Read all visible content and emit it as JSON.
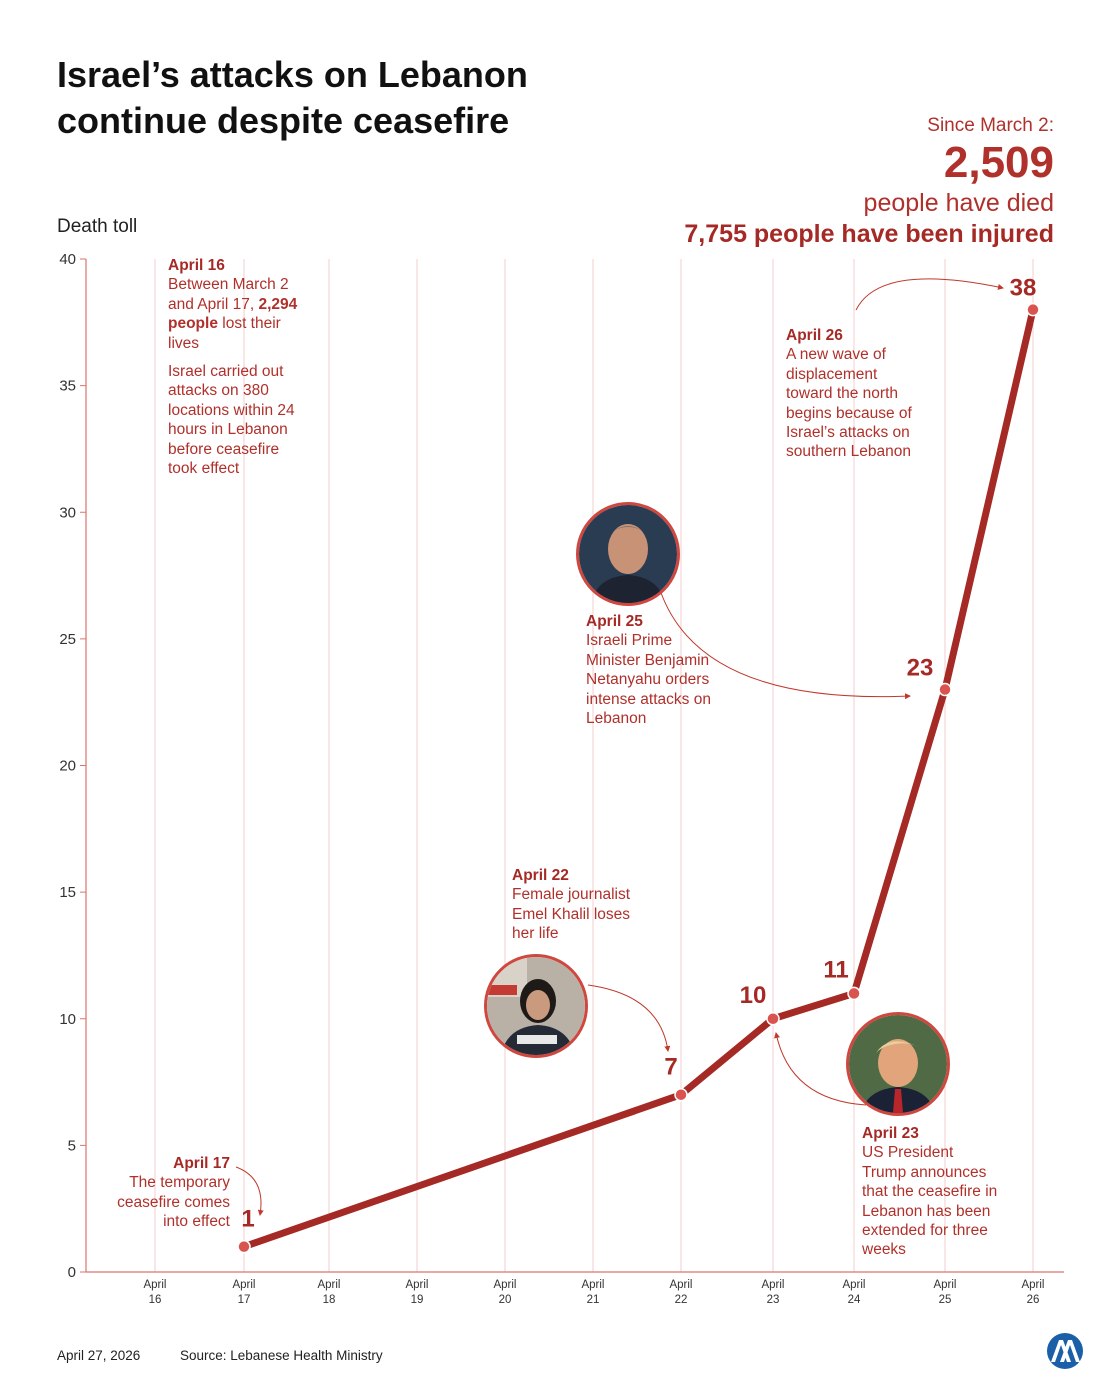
{
  "title": [
    "Israel’s attacks on Lebanon",
    "continue despite ceasefire"
  ],
  "summary": {
    "since": "Since March 2:",
    "died_number": "2,509",
    "died_text": "people have died",
    "injured": "7,755 people have been injured"
  },
  "colors": {
    "accent": "#a52a25",
    "text_accent": "#b0302b",
    "gridline": "#f2cfcc"
  },
  "chart_data": {
    "type": "line",
    "title": "Israel’s attacks on Lebanon continue despite ceasefire",
    "ylabel": "Death toll",
    "xlabel": "",
    "ylim": [
      0,
      40
    ],
    "yticks": [
      0,
      5,
      10,
      15,
      20,
      25,
      30,
      35,
      40
    ],
    "categories": [
      [
        "April",
        "16"
      ],
      [
        "April",
        "17"
      ],
      [
        "April",
        "18"
      ],
      [
        "April",
        "19"
      ],
      [
        "April",
        "20"
      ],
      [
        "April",
        "21"
      ],
      [
        "April",
        "22"
      ],
      [
        "April",
        "23"
      ],
      [
        "April",
        "24"
      ],
      [
        "April",
        "25"
      ],
      [
        "April",
        "26"
      ]
    ],
    "series": [
      {
        "name": "Death toll",
        "points": [
          {
            "x": 1,
            "y": 1,
            "label": "1"
          },
          {
            "x": 6,
            "y": 7,
            "label": "7"
          },
          {
            "x": 7,
            "y": 10,
            "label": "10"
          },
          {
            "x": 8,
            "y": 11,
            "label": "11"
          },
          {
            "x": 9,
            "y": 23,
            "label": "23"
          },
          {
            "x": 10,
            "y": 38,
            "label": "38"
          }
        ]
      }
    ]
  },
  "annotations": {
    "april16": {
      "date": "April 16",
      "text1_pre": "Between March 2 and April 17, ",
      "text1_bold": "2,294 people",
      "text1_post": " lost their lives",
      "text2": "Israel carried out attacks on 380 locations within 24 hours in Lebanon before ceasefire took effect"
    },
    "april17": {
      "date": "April 17",
      "text": "The temporary ceasefire comes into effect"
    },
    "april22": {
      "date": "April 22",
      "text": "Female journalist Emel Khalil loses her life"
    },
    "april23": {
      "date": "April 23",
      "text": "US President Trump announces that the ceasefire in Lebanon has been extended for three weeks"
    },
    "april25": {
      "date": "April 25",
      "text": "Israeli Prime Minister Benjamin Netanyahu orders intense attacks on Lebanon"
    },
    "april26": {
      "date": "April 26",
      "text": "A new wave of displacement toward the north begins because of Israel’s attacks on southern Lebanon"
    }
  },
  "footer": {
    "date": "April 27, 2026",
    "source": "Source: Lebanese Health Ministry"
  },
  "icons": {
    "photo1": "journalist-photo",
    "photo2": "netanyahu-photo",
    "photo3": "trump-photo",
    "logo": "aa-logo-icon"
  }
}
